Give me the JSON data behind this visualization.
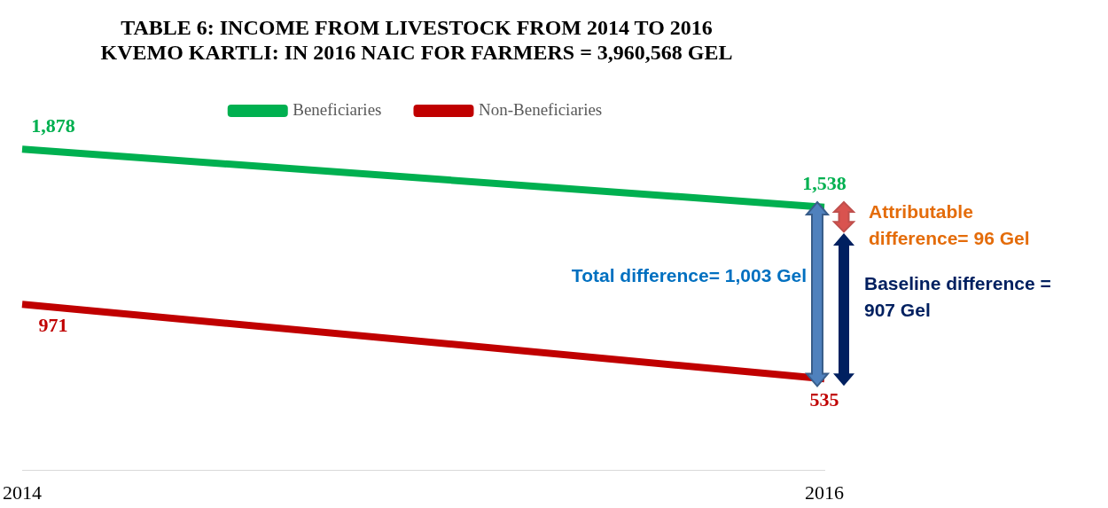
{
  "chart_data": {
    "type": "line",
    "title": "TABLE 6: INCOME FROM LIVESTOCK FROM 2014 TO 2016\nKVEMO KARTLI: IN 2016 NAIC FOR FARMERS = 3,960,568 GEL",
    "categories": [
      "2014",
      "2016"
    ],
    "series": [
      {
        "name": "Beneficiaries",
        "color": "#00b050",
        "values": [
          1878,
          1538
        ],
        "value_labels": [
          "1,878",
          "1,538"
        ]
      },
      {
        "name": "Non-Beneficiaries",
        "color": "#c00000",
        "values": [
          971,
          535
        ],
        "value_labels": [
          "971",
          "535"
        ]
      }
    ],
    "legend": "top",
    "marker": "none",
    "line_style": "solid",
    "grid": false,
    "tick_labels": "x",
    "annotations": [
      "Total difference= 1,003 Gel",
      "Attributable difference= 96 Gel",
      "Baseline difference = 907 Gel"
    ]
  }
}
